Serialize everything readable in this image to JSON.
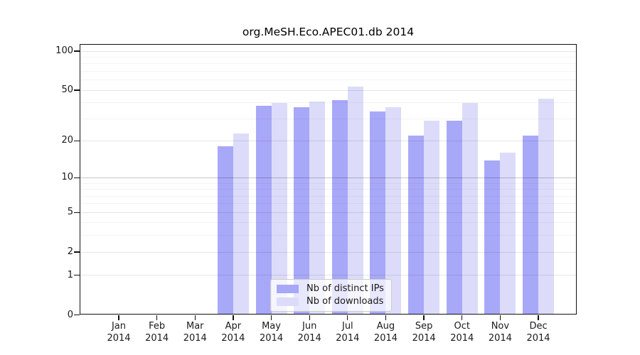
{
  "chart_data": {
    "type": "bar",
    "title": "org.MeSH.Eco.APEC01.db 2014",
    "y_scale": "log10(value+1)",
    "grid": true,
    "categories": [
      "Jan",
      "Feb",
      "Mar",
      "Apr",
      "May",
      "Jun",
      "Jul",
      "Aug",
      "Sep",
      "Oct",
      "Nov",
      "Dec"
    ],
    "year": "2014",
    "series": [
      {
        "name": "Nb of distinct IPs",
        "color": "#a8a8f8",
        "values": [
          0,
          0,
          0,
          18,
          38,
          37,
          42,
          34,
          22,
          29,
          14,
          22
        ]
      },
      {
        "name": "Nb of downloads",
        "color": "#dcdcfa",
        "values": [
          0,
          0,
          0,
          23,
          40,
          41,
          53,
          37,
          29,
          40,
          16,
          43
        ]
      }
    ],
    "y_ticks_major": [
      0,
      1,
      2,
      5,
      10,
      20,
      50,
      100
    ],
    "y_ticks_minor": [
      3,
      4,
      6,
      7,
      8,
      9,
      30,
      40,
      60,
      70,
      80,
      90
    ],
    "ylim": [
      0,
      113
    ],
    "legend_position": "inside-bottom-center"
  },
  "colors": {
    "axis": "#111111",
    "text": "#1a1a1a",
    "background": "#ffffff",
    "grid_major": "rgba(0,0,0,0.10)",
    "grid_emphasis": "rgba(0,0,0,0.22)",
    "grid_minor": "rgba(0,0,0,0.045)"
  },
  "legend": {
    "emphasized_gridline_value": 10
  }
}
